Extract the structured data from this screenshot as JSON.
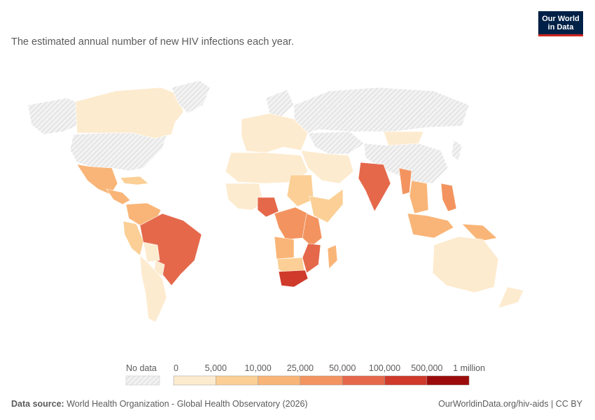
{
  "subtitle": "The estimated annual number of new HIV infections each year.",
  "logo": {
    "line1": "Our World",
    "line2": "in Data"
  },
  "colors": {
    "no_data": "#e4e4e4",
    "bins": [
      "#fdebcf",
      "#fbcf95",
      "#f9b577",
      "#f39460",
      "#e5684b",
      "#cf3a2b",
      "#9b0b0b"
    ]
  },
  "legend": {
    "no_data_label": "No data",
    "ticks": [
      "0",
      "5,000",
      "10,000",
      "25,000",
      "50,000",
      "100,000",
      "500,000",
      "1 million"
    ]
  },
  "regions": [
    {
      "name": "canada",
      "bin": 0
    },
    {
      "name": "usa",
      "bin": -1
    },
    {
      "name": "alaska",
      "bin": -1
    },
    {
      "name": "greenland",
      "bin": -1
    },
    {
      "name": "mexico",
      "bin": 2
    },
    {
      "name": "central-america",
      "bin": 2
    },
    {
      "name": "caribbean",
      "bin": 1
    },
    {
      "name": "colombia-venezuela",
      "bin": 2
    },
    {
      "name": "ecuador-peru",
      "bin": 1
    },
    {
      "name": "brazil",
      "bin": 4
    },
    {
      "name": "bolivia",
      "bin": 0
    },
    {
      "name": "paraguay",
      "bin": 0
    },
    {
      "name": "southern-cone",
      "bin": 0
    },
    {
      "name": "europe",
      "bin": 0
    },
    {
      "name": "scandinavia",
      "bin": -1
    },
    {
      "name": "russia",
      "bin": -1
    },
    {
      "name": "central-asia",
      "bin": -1
    },
    {
      "name": "middle-east",
      "bin": 0
    },
    {
      "name": "north-africa",
      "bin": 0
    },
    {
      "name": "west-africa",
      "bin": 0
    },
    {
      "name": "nigeria",
      "bin": 4
    },
    {
      "name": "sudan",
      "bin": 1
    },
    {
      "name": "horn-of-africa",
      "bin": 1
    },
    {
      "name": "central-africa",
      "bin": 3
    },
    {
      "name": "east-africa",
      "bin": 3
    },
    {
      "name": "angola",
      "bin": 2
    },
    {
      "name": "mozambique",
      "bin": 4
    },
    {
      "name": "southern-africa",
      "bin": 1
    },
    {
      "name": "south-africa",
      "bin": 5
    },
    {
      "name": "madagascar",
      "bin": 2
    },
    {
      "name": "india",
      "bin": 4
    },
    {
      "name": "myanmar",
      "bin": 3
    },
    {
      "name": "china",
      "bin": -1
    },
    {
      "name": "mongolia",
      "bin": 0
    },
    {
      "name": "southeast-asia",
      "bin": 2
    },
    {
      "name": "philippines",
      "bin": 3
    },
    {
      "name": "indonesia",
      "bin": 2
    },
    {
      "name": "papua-new-guinea",
      "bin": 2
    },
    {
      "name": "japan",
      "bin": -1
    },
    {
      "name": "australia",
      "bin": 0
    },
    {
      "name": "new-zealand",
      "bin": 0
    }
  ],
  "source": {
    "label": "Data source:",
    "text": "World Health Organization - Global Health Observatory (2026)",
    "url_text": "OurWorldinData.org/hiv-aids | CC BY"
  }
}
